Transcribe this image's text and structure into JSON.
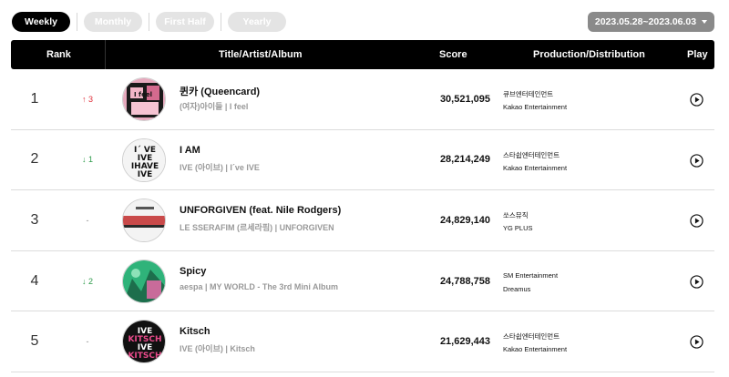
{
  "filters": {
    "weekly": "Weekly",
    "monthly": "Monthly",
    "first_half": "First Half",
    "yearly": "Yearly"
  },
  "date_range": "2023.05.28~2023.06.03",
  "columns": {
    "rank": "Rank",
    "title": "Title/Artist/Album",
    "score": "Score",
    "production": "Production/Distribution",
    "play": "Play"
  },
  "rows": [
    {
      "rank": "1",
      "change": "↑ 3",
      "change_dir": "up",
      "title": "퀸카 (Queencard)",
      "sub": "(여자)아이들 | I feel",
      "score": "30,521,095",
      "production": "큐브엔터테인먼트",
      "distribution": "Kakao Entertainment",
      "cover": "album-cover-i-feel"
    },
    {
      "rank": "2",
      "change": "↓ 1",
      "change_dir": "down",
      "title": "I AM",
      "sub": "IVE (아이브) | I´ve IVE",
      "score": "28,214,249",
      "production": "스타쉽엔터테인먼트",
      "distribution": "Kakao Entertainment",
      "cover": "album-cover-ive-ive"
    },
    {
      "rank": "3",
      "change": "-",
      "change_dir": "same",
      "title": "UNFORGIVEN (feat. Nile Rodgers)",
      "sub": "LE SSERAFIM (르세라핌) | UNFORGIVEN",
      "score": "24,829,140",
      "production": "쏘스뮤직",
      "distribution": "YG PLUS",
      "cover": "album-cover-unforgiven"
    },
    {
      "rank": "4",
      "change": "↓ 2",
      "change_dir": "down",
      "title": "Spicy",
      "sub": "aespa | MY WORLD - The 3rd Mini Album",
      "score": "24,788,758",
      "production": "SM Entertainment",
      "distribution": "Dreamus",
      "cover": "album-cover-my-world"
    },
    {
      "rank": "5",
      "change": "-",
      "change_dir": "same",
      "title": "Kitsch",
      "sub": "IVE (아이브) | Kitsch",
      "score": "21,629,443",
      "production": "스타쉽엔터테인먼트",
      "distribution": "Kakao Entertainment",
      "cover": "album-cover-kitsch"
    }
  ],
  "colors": {
    "header_bg": "#000000",
    "up": "#e0303a",
    "down": "#2d9b4a"
  },
  "icons": {
    "play": "play-circle-icon",
    "dropdown": "chevron-down-icon"
  }
}
